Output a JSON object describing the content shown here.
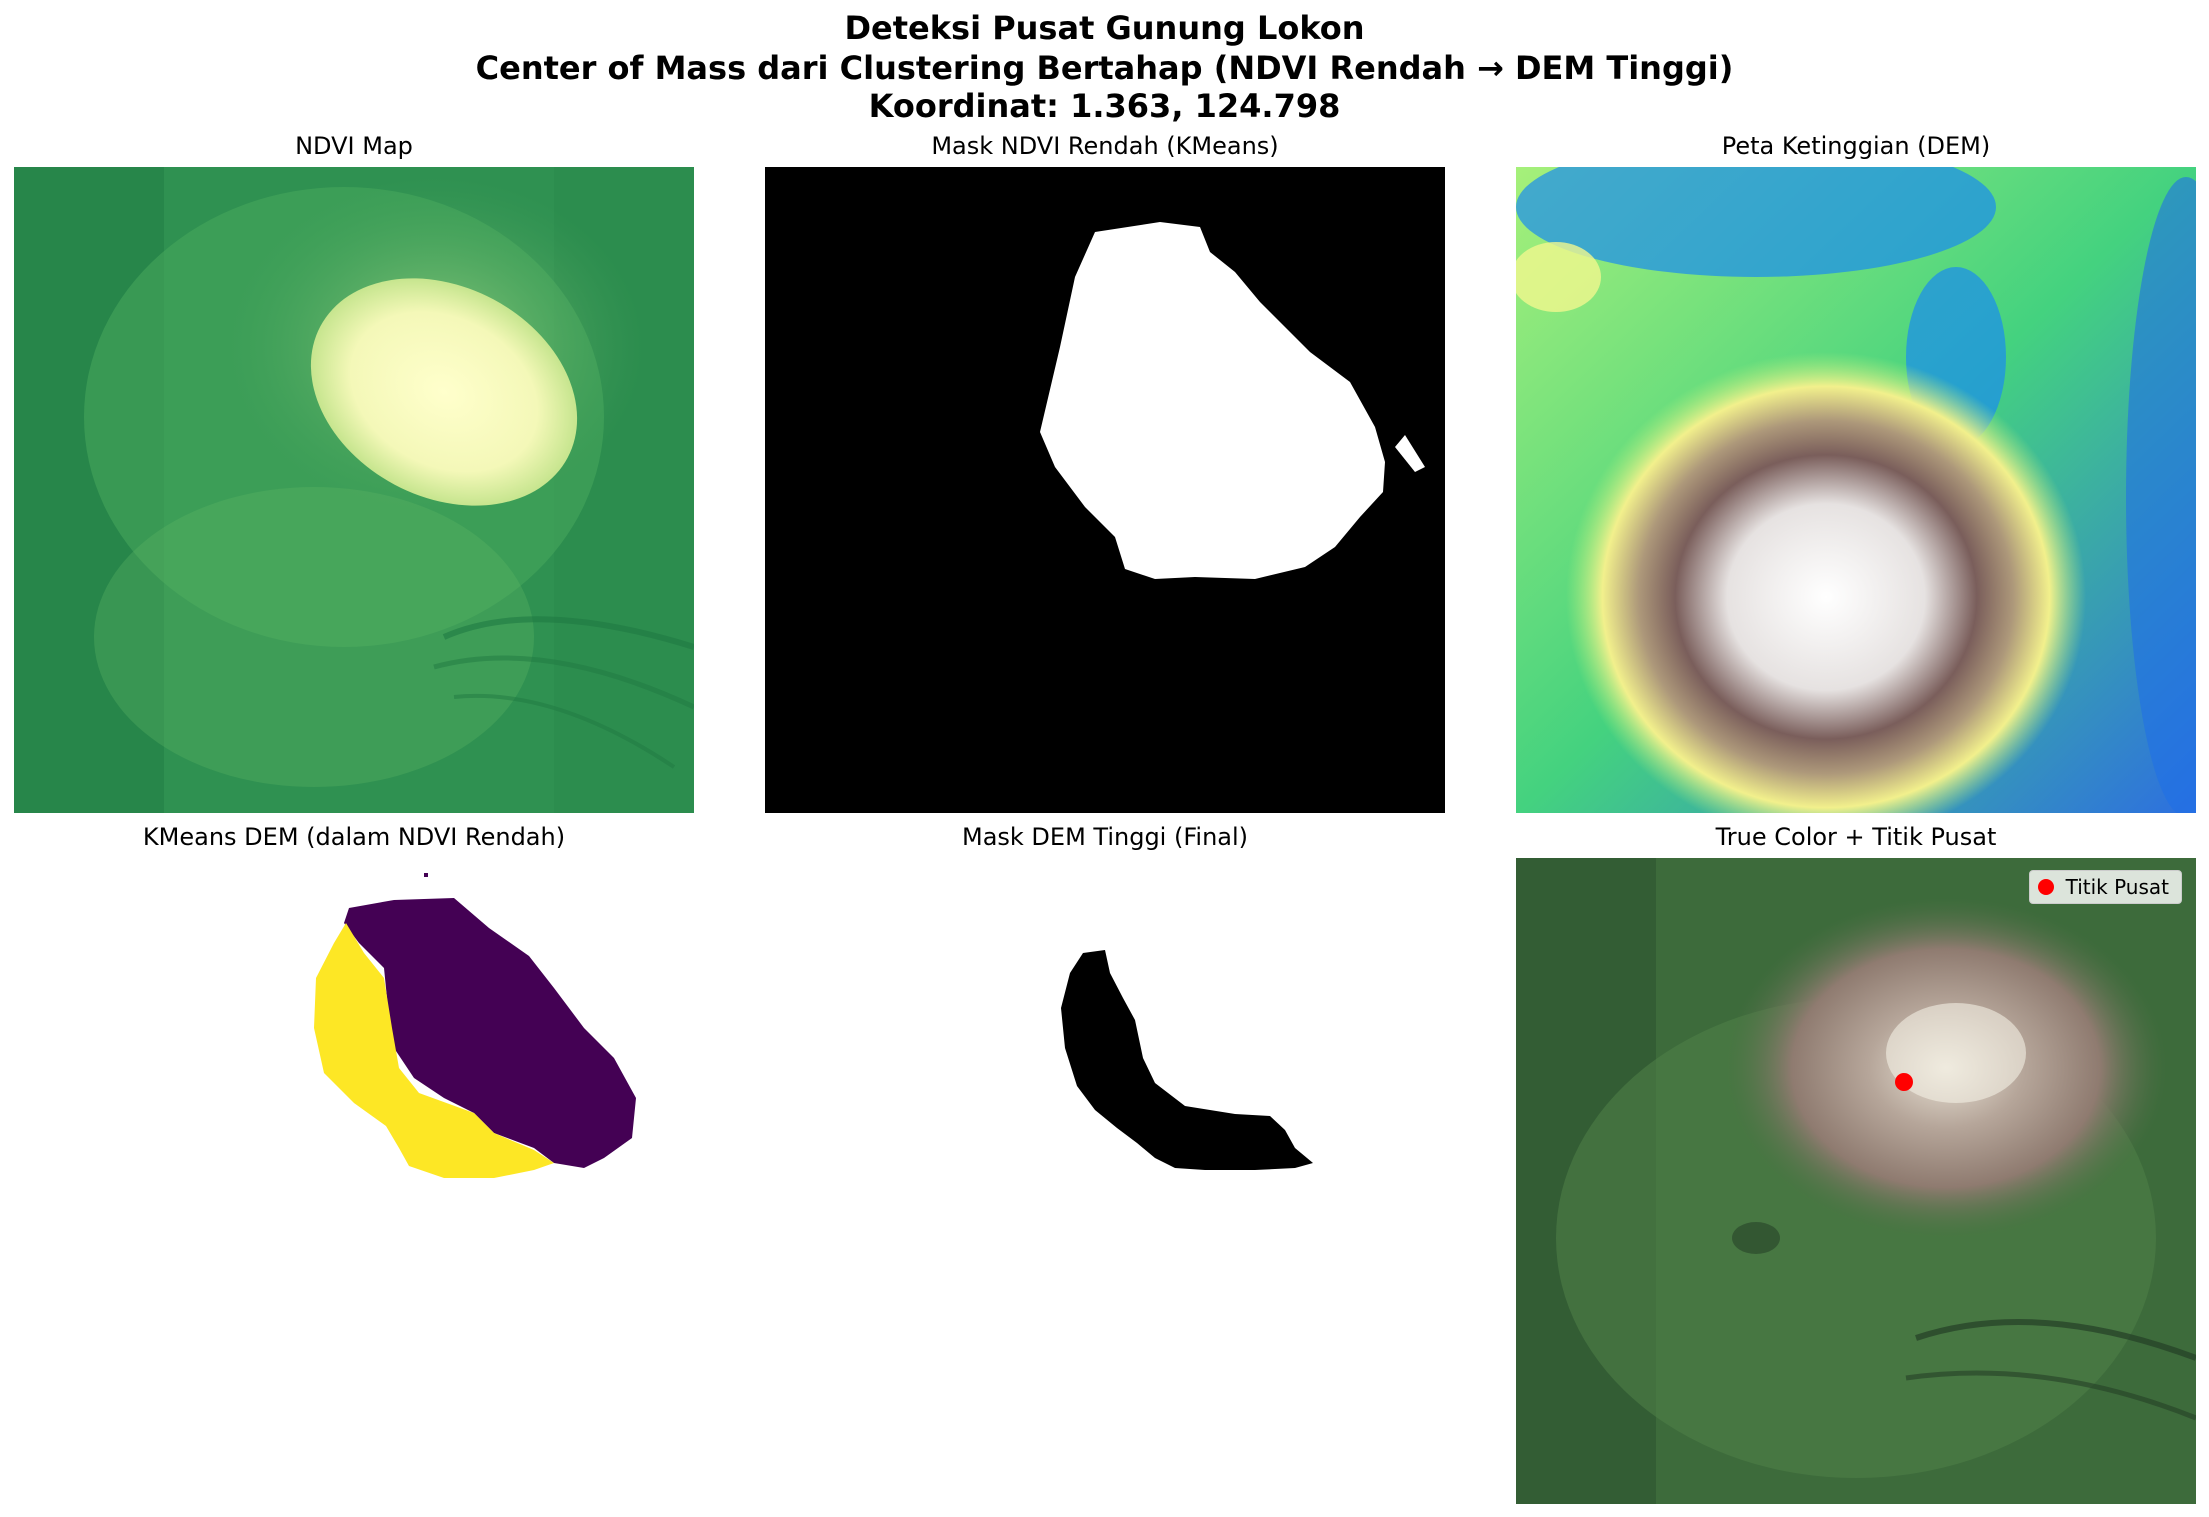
{
  "figure": {
    "title_line1": "Deteksi Pusat Gunung Lokon",
    "title_line2": "Center of Mass dari Clustering Bertahap (NDVI Rendah → DEM Tinggi)",
    "title_line3": "Koordinat: 1.363, 124.798"
  },
  "panels": [
    {
      "title": "NDVI Map",
      "colormap": "YlGn"
    },
    {
      "title": "Mask NDVI Rendah (KMeans)",
      "colormap": "gray"
    },
    {
      "title": "Peta Ketinggian (DEM)",
      "colormap": "terrain"
    },
    {
      "title": "KMeans DEM (dalam NDVI Rendah)",
      "colormap": "viridis"
    },
    {
      "title": "Mask DEM Tinggi (Final)",
      "colormap": "gray"
    },
    {
      "title": "True Color + Titik Pusat",
      "colormap": "rgb"
    }
  ],
  "legend": {
    "label": "Titik Pusat",
    "marker_color": "#ff0000"
  },
  "center_point": {
    "lat": 1.363,
    "lon": 124.798
  }
}
